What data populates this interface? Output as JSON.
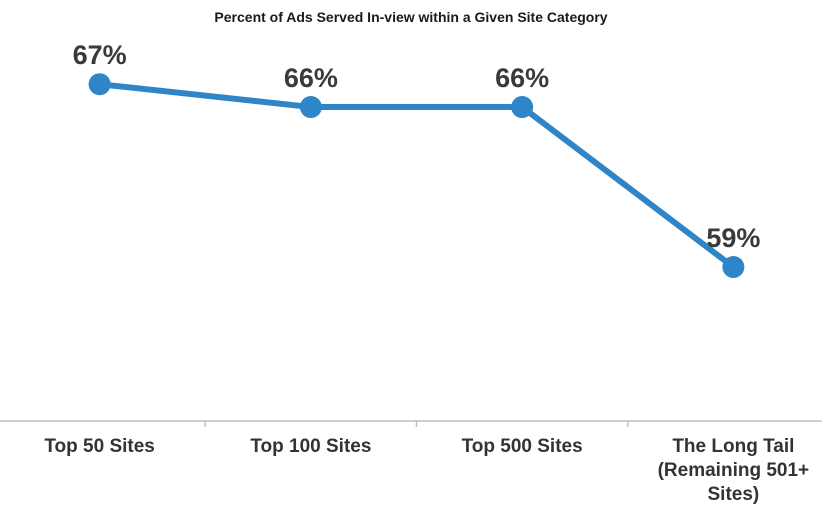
{
  "chart_data": {
    "type": "line",
    "title": "Percent of Ads Served In-view within a Given Site Category",
    "xlabel": "",
    "ylabel": "",
    "categories": [
      [
        "Top 50 Sites"
      ],
      [
        "Top 100 Sites"
      ],
      [
        "Top 500 Sites"
      ],
      [
        "The Long Tail",
        "(Remaining 501+",
        "Sites)"
      ]
    ],
    "series": [
      {
        "values": [
          67,
          66,
          66,
          59
        ],
        "data_labels": [
          "67%",
          "66%",
          "66%",
          "59%"
        ],
        "color": "#2e86c9"
      }
    ],
    "ylim": [
      52,
      69
    ],
    "grid": false,
    "legend": "none",
    "axis_color": "#bfbfbf"
  }
}
